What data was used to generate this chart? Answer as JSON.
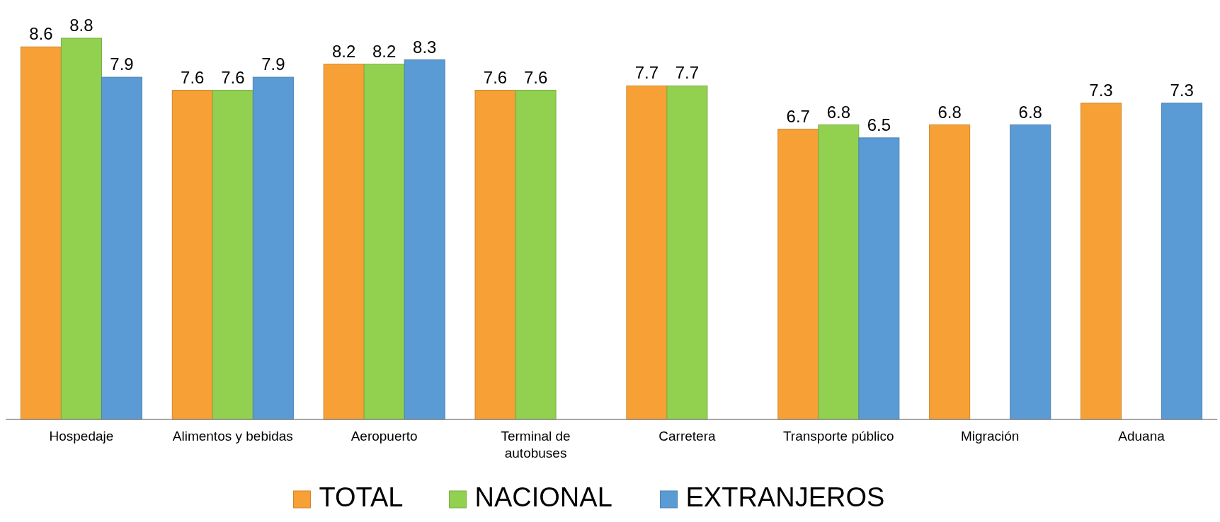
{
  "chart_data": {
    "type": "bar",
    "categories": [
      "Hospedaje",
      "Alimentos y bebidas",
      "Aeropuerto",
      "Terminal de autobuses",
      "Carretera",
      "Transporte público",
      "Migración",
      "Aduana"
    ],
    "series": [
      {
        "name": "TOTAL",
        "color": "#f7a035",
        "values": [
          8.6,
          7.6,
          8.2,
          7.6,
          7.7,
          6.7,
          6.8,
          7.3
        ]
      },
      {
        "name": "NACIONAL",
        "color": "#92d050",
        "values": [
          8.8,
          7.6,
          8.2,
          7.6,
          7.7,
          6.8,
          null,
          null
        ]
      },
      {
        "name": "EXTRANJEROS",
        "color": "#5b9bd5",
        "values": [
          7.9,
          7.9,
          8.3,
          null,
          null,
          6.5,
          6.8,
          7.3
        ]
      }
    ],
    "data_labels": true,
    "legend": "bottom"
  }
}
